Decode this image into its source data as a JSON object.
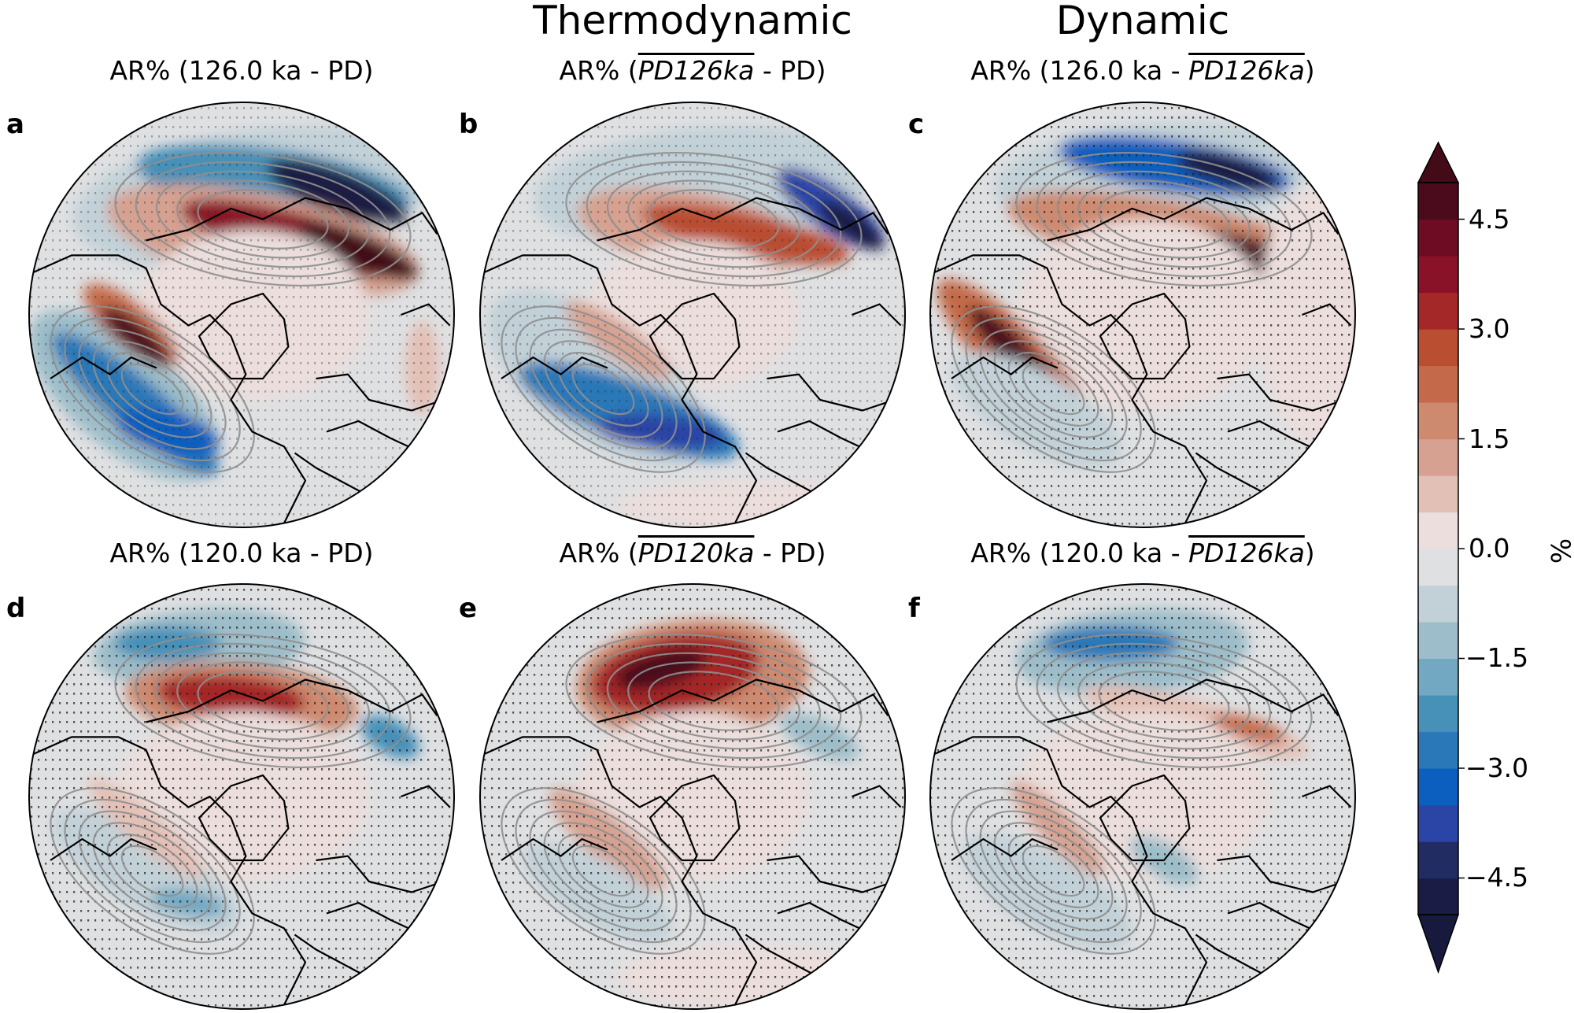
{
  "column_titles": [
    "Thermodynamic",
    "Dynamic"
  ],
  "panels": [
    {
      "letter": "a",
      "title_pre": "AR% (126.0 ka - PD)",
      "title_ovl": "",
      "title_post": "",
      "pattern": "a"
    },
    {
      "letter": "b",
      "title_pre": "AR% (",
      "title_ovl": "PD126ka",
      "title_post": " - PD)",
      "pattern": "b"
    },
    {
      "letter": "c",
      "title_pre": "AR% (126.0 ka - ",
      "title_ovl": "PD126ka",
      "title_post": ")",
      "pattern": "c"
    },
    {
      "letter": "d",
      "title_pre": "AR% (120.0 ka - PD)",
      "title_ovl": "",
      "title_post": "",
      "pattern": "d"
    },
    {
      "letter": "e",
      "title_pre": "AR% (",
      "title_ovl": "PD120ka",
      "title_post": " - PD)",
      "pattern": "e"
    },
    {
      "letter": "f",
      "title_pre": "AR% (120.0 ka - ",
      "title_ovl": "PD126ka",
      "title_post": ")",
      "pattern": "f"
    }
  ],
  "colorbar": {
    "label": "%",
    "min": -5.0,
    "max": 5.0,
    "step": 0.5,
    "ticks": [
      "4.5",
      "3.0",
      "1.5",
      "0.0",
      "−1.5",
      "−3.0",
      "−4.5"
    ],
    "tick_values": [
      4.5,
      3.0,
      1.5,
      0.0,
      -1.5,
      -3.0,
      -4.5
    ],
    "extend": "both",
    "colors_low_to_high": [
      "#1b1c45",
      "#212c63",
      "#2b45a6",
      "#0d5fbf",
      "#2a78b8",
      "#4790b8",
      "#72a8c2",
      "#9cbdc9",
      "#c2d1d8",
      "#dfe0e2",
      "#ebdedc",
      "#e3c0b5",
      "#d6a190",
      "#cd8a6f",
      "#c46a4a",
      "#b94e30",
      "#a52828",
      "#8a1228",
      "#6e0c24",
      "#4c0b1c"
    ],
    "extend_low_color": "#181a3d",
    "extend_high_color": "#430a17"
  }
}
